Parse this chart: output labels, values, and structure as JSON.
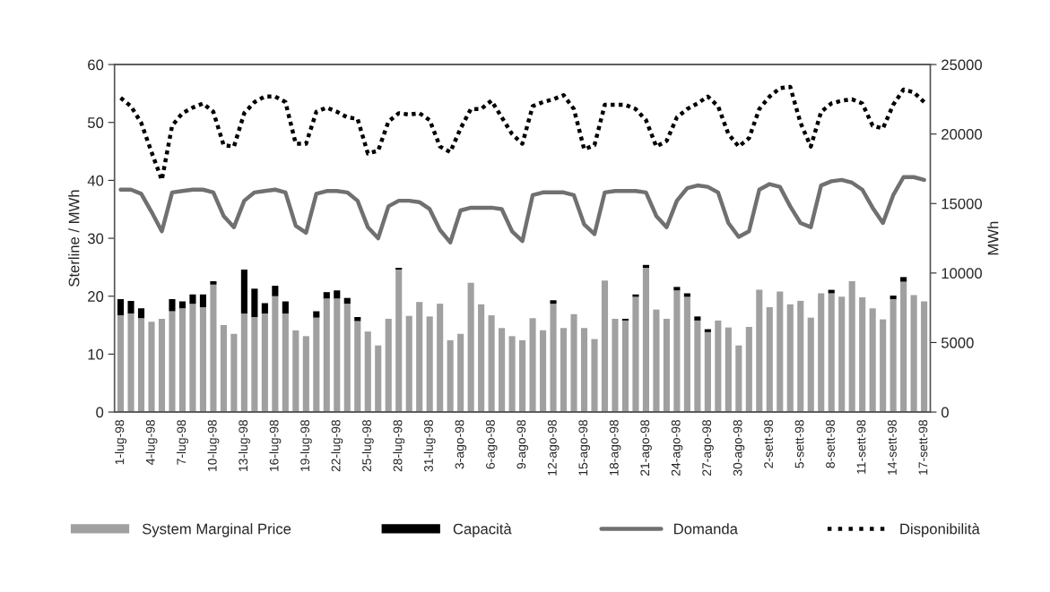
{
  "chart_data": {
    "type": "bar",
    "stacked": true,
    "ylabel": "Sterline / MWh",
    "y2label": "MWh",
    "categories": [
      "1-lug-98",
      null,
      null,
      "4-lug-98",
      null,
      null,
      "7-lug-98",
      null,
      null,
      "10-lug-98",
      null,
      null,
      "13-lug-98",
      null,
      null,
      "16-lug-98",
      null,
      null,
      "19-lug-98",
      null,
      null,
      "22-lug-98",
      null,
      null,
      "25-lug-98",
      null,
      null,
      "28-lug-98",
      null,
      null,
      "31-lug-98",
      null,
      null,
      "3-ago-98",
      null,
      null,
      "6-ago-98",
      null,
      null,
      "9-ago-98",
      null,
      null,
      "12-ago-98",
      null,
      null,
      "15-ago-98",
      null,
      null,
      "18-ago-98",
      null,
      null,
      "21-ago-98",
      null,
      null,
      "24-ago-98",
      null,
      null,
      "27-ago-98",
      null,
      null,
      "30-ago-98",
      null,
      null,
      "2-sett-98",
      null,
      null,
      "5-sett-98",
      null,
      null,
      "8-sett-98",
      null,
      null,
      "11-sett-98",
      null,
      null,
      "14-sett-98",
      null,
      null,
      "17-sett-98"
    ],
    "ylim": [
      0,
      60
    ],
    "yticks": [
      0,
      10,
      20,
      30,
      40,
      50,
      60
    ],
    "y2lim": [
      0,
      25000
    ],
    "y2ticks": [
      0,
      5000,
      10000,
      15000,
      20000,
      25000
    ],
    "legend": "bottom",
    "grid": false,
    "series": [
      {
        "name": "System Marginal Price",
        "color": "#a0a0a0",
        "values": [
          16.7,
          17.0,
          16.2,
          15.6,
          16.1,
          17.4,
          17.9,
          18.7,
          18.1,
          22.0,
          15.0,
          13.5,
          17.0,
          16.4,
          17.0,
          20.0,
          17.0,
          14.1,
          13.1,
          16.3,
          19.6,
          19.6,
          18.7,
          15.7,
          13.9,
          11.5,
          16.1,
          24.6,
          16.6,
          19.0,
          16.5,
          18.7,
          12.4,
          13.5,
          22.3,
          18.6,
          16.7,
          14.5,
          13.1,
          12.4,
          16.2,
          14.1,
          18.7,
          14.5,
          16.9,
          14.5,
          12.6,
          22.7,
          16.1,
          15.8,
          19.9,
          24.9,
          17.7,
          16.1,
          21.0,
          19.9,
          15.8,
          13.8,
          15.8,
          14.6,
          11.5,
          14.7,
          21.1,
          18.1,
          20.8,
          18.6,
          19.2,
          16.3,
          20.5,
          20.5,
          19.9,
          22.6,
          19.8,
          17.9,
          16.0,
          19.5,
          22.5,
          20.2,
          19.1
        ]
      },
      {
        "name": "Capacità",
        "color": "#000000",
        "values": [
          2.8,
          2.2,
          1.7,
          null,
          null,
          2.1,
          1.2,
          1.6,
          2.2,
          0.6,
          null,
          null,
          7.6,
          4.9,
          1.8,
          1.8,
          2.1,
          null,
          null,
          1.1,
          1.1,
          1.4,
          1.0,
          0.7,
          null,
          null,
          null,
          0.3,
          null,
          null,
          null,
          null,
          null,
          null,
          null,
          null,
          null,
          null,
          null,
          null,
          null,
          null,
          0.6,
          null,
          null,
          null,
          null,
          null,
          null,
          0.3,
          0.4,
          0.5,
          null,
          null,
          0.6,
          0.6,
          0.7,
          0.5,
          null,
          null,
          null,
          null,
          null,
          null,
          null,
          null,
          null,
          null,
          null,
          0.6,
          null,
          null,
          null,
          null,
          null,
          0.6,
          0.8,
          null,
          null
        ]
      },
      {
        "name": "Domanda",
        "type": "line",
        "axis": "y2",
        "color": "#707070",
        "line_style": "solid",
        "values": [
          16000,
          16000,
          15700,
          14400,
          13000,
          15800,
          15900,
          16000,
          16000,
          15800,
          14100,
          13300,
          15200,
          15800,
          15900,
          16000,
          15800,
          13400,
          12900,
          15700,
          15900,
          15900,
          15800,
          15200,
          13300,
          12500,
          14800,
          15200,
          15200,
          15100,
          14600,
          13100,
          12200,
          14500,
          14700,
          14700,
          14700,
          14600,
          13000,
          12300,
          15600,
          15800,
          15800,
          15800,
          15600,
          13500,
          12800,
          15800,
          15900,
          15900,
          15900,
          15800,
          14100,
          13300,
          15200,
          16100,
          16300,
          16200,
          15800,
          13600,
          12600,
          13000,
          16000,
          16400,
          16200,
          14800,
          13600,
          13300,
          16300,
          16600,
          16700,
          16500,
          16000,
          14700,
          13600,
          15600,
          16900,
          16900,
          16700
        ]
      },
      {
        "name": "Disponibilità",
        "type": "line",
        "axis": "y2",
        "color": "#000000",
        "line_style": "dotted",
        "values": [
          22600,
          22000,
          20800,
          18700,
          16700,
          20600,
          21500,
          21900,
          22200,
          21600,
          19200,
          19100,
          21500,
          22300,
          22700,
          22700,
          22300,
          19300,
          19300,
          21600,
          21900,
          21600,
          21200,
          21100,
          18600,
          18800,
          20900,
          21500,
          21400,
          21500,
          21000,
          19100,
          18700,
          20400,
          21800,
          21800,
          22400,
          21200,
          20000,
          19300,
          22000,
          22300,
          22500,
          22800,
          21800,
          18900,
          19200,
          22100,
          22100,
          22100,
          21800,
          21000,
          19100,
          19500,
          21200,
          21800,
          22200,
          22700,
          22000,
          20000,
          19100,
          19700,
          21800,
          22700,
          23300,
          23400,
          20800,
          19100,
          21600,
          22200,
          22400,
          22500,
          22200,
          20600,
          20400,
          22100,
          23200,
          23000,
          22300
        ]
      }
    ]
  }
}
